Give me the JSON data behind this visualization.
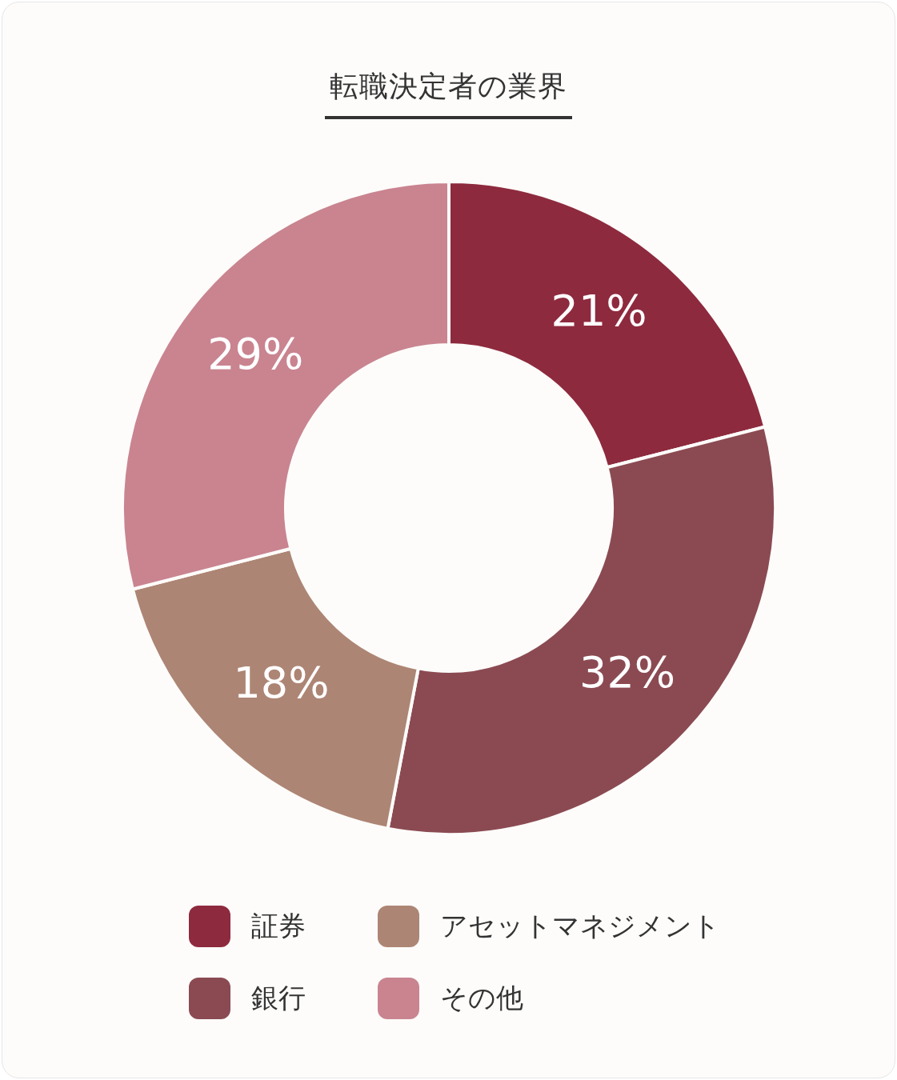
{
  "chart_data": {
    "type": "donut",
    "title": "転職決定者の業界",
    "categories": [
      "証券",
      "銀行",
      "アセットマネジメント",
      "その他"
    ],
    "values": [
      21,
      32,
      18,
      29
    ],
    "colors": [
      "#8e2a3e",
      "#8b4a52",
      "#ad8574",
      "#c98490"
    ],
    "value_labels": [
      "21%",
      "32%",
      "18%",
      "29%"
    ],
    "legend": "bottom"
  }
}
